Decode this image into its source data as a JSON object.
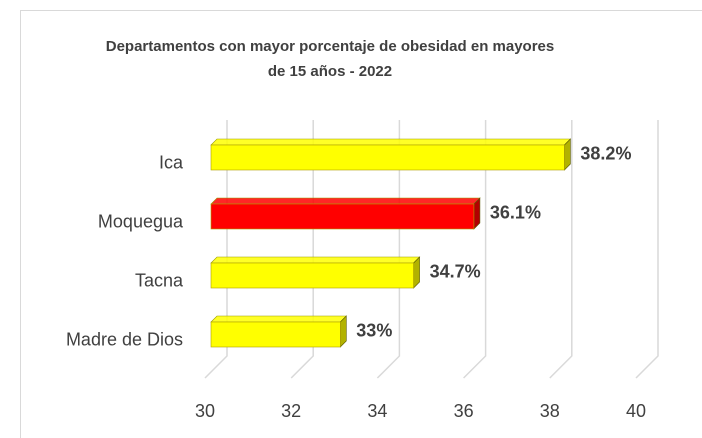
{
  "chart_data": {
    "type": "bar",
    "orientation": "horizontal",
    "title": "Departamentos con mayor porcentaje de obesidad en mayores de 15 años - 2022",
    "categories": [
      "Ica",
      "Moquegua",
      "Tacna",
      "Madre de Dios"
    ],
    "values": [
      38.2,
      36.1,
      34.7,
      33
    ],
    "value_labels": [
      "38.2%",
      "36.1%",
      "34.7%",
      "33%"
    ],
    "colors": [
      "#ffff00",
      "#ff0000",
      "#ffff00",
      "#ffff00"
    ],
    "xlim": [
      30,
      40
    ],
    "xticks": [
      30,
      32,
      34,
      36,
      38,
      40
    ],
    "grid": true
  }
}
